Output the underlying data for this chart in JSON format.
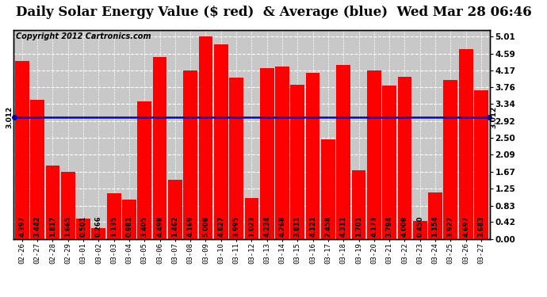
{
  "title": "Daily Solar Energy Value ($ red)  & Average (blue)  Wed Mar 28 06:46",
  "copyright": "Copyright 2012 Cartronics.com",
  "categories": [
    "02-26",
    "02-27",
    "02-28",
    "02-29",
    "03-01",
    "03-02",
    "03-03",
    "03-04",
    "03-05",
    "03-06",
    "03-07",
    "03-08",
    "03-09",
    "03-10",
    "03-11",
    "03-12",
    "03-13",
    "03-14",
    "03-15",
    "03-16",
    "03-17",
    "03-18",
    "03-19",
    "03-20",
    "03-21",
    "03-22",
    "03-23",
    "03-24",
    "03-25",
    "03-26",
    "03-27"
  ],
  "values": [
    4.397,
    3.442,
    1.817,
    1.665,
    0.501,
    0.266,
    1.135,
    0.981,
    3.405,
    4.498,
    1.462,
    4.169,
    5.008,
    4.827,
    3.995,
    1.023,
    4.234,
    4.268,
    3.811,
    4.121,
    2.458,
    4.311,
    1.701,
    4.173,
    3.794,
    4.008,
    0.45,
    1.154,
    3.927,
    4.697,
    3.683
  ],
  "average": 3.012,
  "bar_color": "#ff0000",
  "avg_line_color": "#0000cd",
  "background_color": "#ffffff",
  "plot_bg_color": "#c8c8c8",
  "grid_color": "#808080",
  "ylim": [
    0,
    5.18
  ],
  "yticks": [
    0.0,
    0.42,
    0.83,
    1.25,
    1.67,
    2.09,
    2.5,
    2.92,
    3.34,
    3.76,
    4.17,
    4.59,
    5.01
  ],
  "title_fontsize": 12,
  "copyright_fontsize": 7,
  "bar_label_fontsize": 6,
  "avg_label": "3.012",
  "avg_label_fontsize": 6.5,
  "tick_label_fontsize": 7.5
}
